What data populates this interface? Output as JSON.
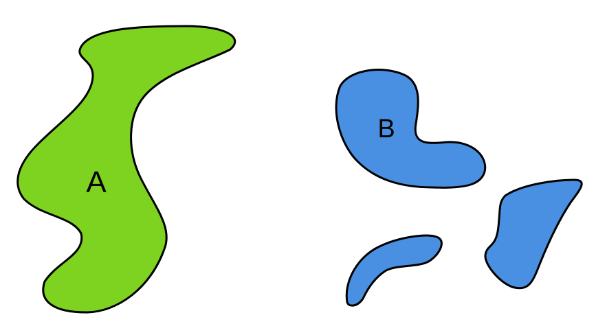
{
  "diagram": {
    "regions": [
      {
        "label": "A",
        "fill": "#7ED321",
        "stroke": "#000000",
        "parts": 1
      },
      {
        "label": "B",
        "fill": "#4A90E2",
        "stroke": "#000000",
        "parts": 3
      }
    ]
  }
}
